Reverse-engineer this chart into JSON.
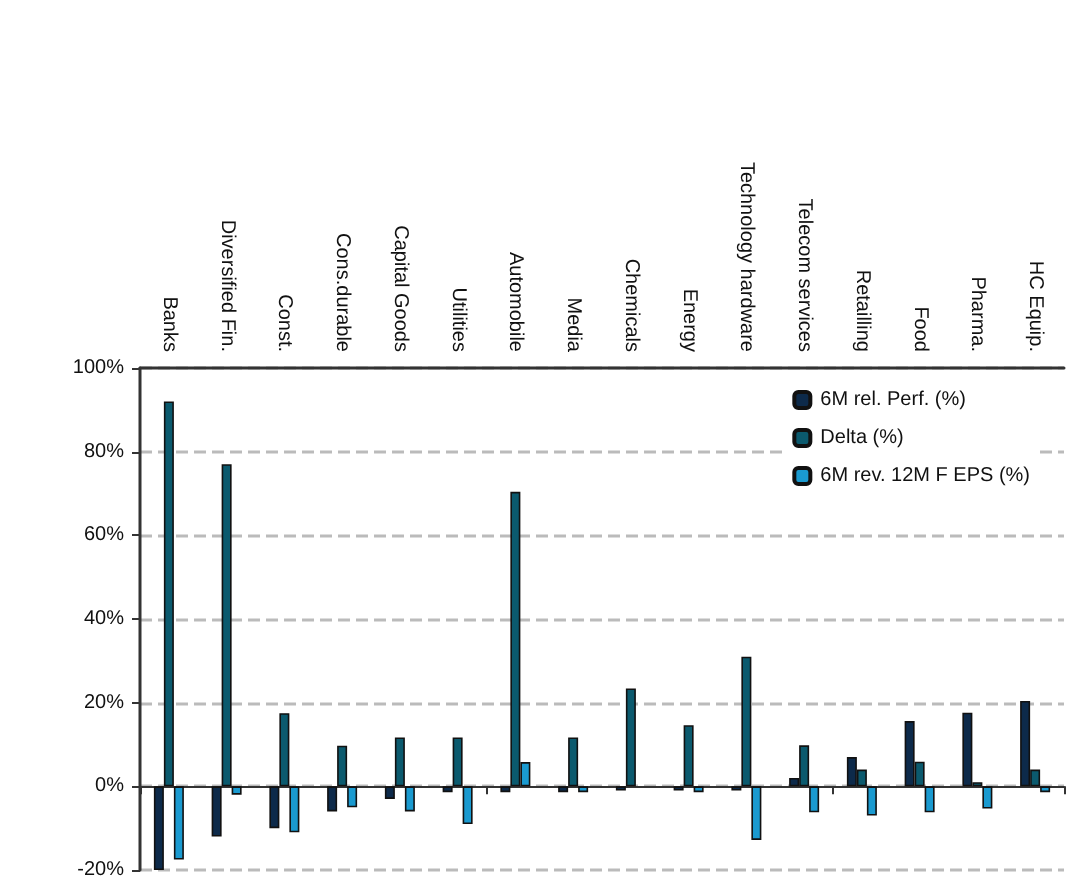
{
  "chart_data": {
    "type": "bar",
    "categories": [
      "Banks",
      "Diversified Fin.",
      "Const.",
      "Cons.durable",
      "Capital Goods",
      "Utilities",
      "Automobile",
      "Media",
      "Chemicals",
      "Energy",
      "Technology hardware",
      "Telecom services",
      "Retailling",
      "Food",
      "Pharma.",
      "HC Equip."
    ],
    "series": [
      {
        "name": "6M rel. Perf. (%)",
        "color": "#0d2a4a",
        "values": [
          -20,
          -12,
          -10,
          -6,
          -3,
          -1.4,
          -1.4,
          -1.4,
          -1,
          -1,
          -1,
          2,
          7,
          15.6,
          17.6,
          20.4
        ]
      },
      {
        "name": "Delta (%)",
        "color": "#0b5a6e",
        "values": [
          92,
          77,
          17.5,
          9.7,
          11.7,
          11.7,
          70.4,
          11.7,
          23.4,
          14.6,
          31,
          9.8,
          4,
          5.9,
          1,
          4
        ]
      },
      {
        "name": "6M rev. 12M F EPS (%)",
        "color": "#1a9ad0",
        "values": [
          -17.5,
          -2,
          -11,
          -5,
          -6,
          -9,
          5.8,
          -1.4,
          null,
          -1.4,
          -12.8,
          -6.2,
          -7,
          -6.2,
          -5.3,
          -1.4
        ]
      }
    ],
    "ylim": [
      -20,
      100
    ],
    "yticks": [
      {
        "value": -20,
        "label": "-20%"
      },
      {
        "value": 0,
        "label": "0%"
      },
      {
        "value": 20,
        "label": "20%"
      },
      {
        "value": 40,
        "label": "40%"
      },
      {
        "value": 60,
        "label": "60%"
      },
      {
        "value": 80,
        "label": "80%"
      },
      {
        "value": 100,
        "label": "100%"
      }
    ],
    "grid": "y",
    "legend": "top right"
  }
}
